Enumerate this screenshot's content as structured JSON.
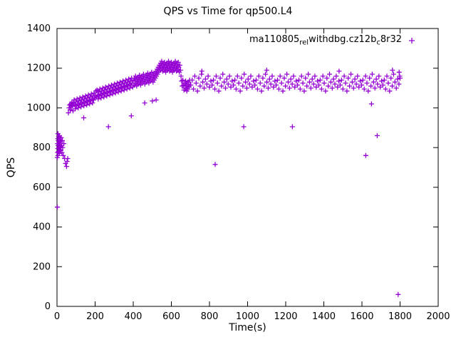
{
  "title": "QPS vs Time for qp500.L4",
  "axes": {
    "xlabel": "Time(s)",
    "ylabel": "QPS",
    "xticks": [
      0,
      200,
      400,
      600,
      800,
      1000,
      1200,
      1400,
      1600,
      1800,
      2000
    ],
    "yticks": [
      0,
      200,
      400,
      600,
      800,
      1000,
      1200,
      1400
    ]
  },
  "legend": {
    "label_plain": "ma110805_rel_withdbg.cz12b_c8r32",
    "parts": [
      {
        "text": "ma110805",
        "sub": false
      },
      {
        "text": "rel",
        "sub": true
      },
      {
        "text": "withdbg.cz12b",
        "sub": false
      },
      {
        "text": "c",
        "sub": true
      },
      {
        "text": "8r32",
        "sub": false
      }
    ]
  },
  "chart_data": {
    "type": "scatter",
    "title": "QPS vs Time for qp500.L4",
    "xlabel": "Time(s)",
    "ylabel": "QPS",
    "xlim": [
      0,
      2000
    ],
    "ylim": [
      0,
      1400
    ],
    "grid": false,
    "legend_position": "top-right-inside",
    "marker": "plus",
    "color": "#9400d3",
    "series_name": "ma110805_rel_withdbg.cz12b_c8r32",
    "points": [
      [
        2,
        500
      ],
      [
        2,
        750
      ],
      [
        3,
        775
      ],
      [
        3,
        820
      ],
      [
        4,
        795
      ],
      [
        4,
        845
      ],
      [
        5,
        760
      ],
      [
        5,
        870
      ],
      [
        6,
        810
      ],
      [
        7,
        835
      ],
      [
        8,
        780
      ],
      [
        9,
        855
      ],
      [
        10,
        800
      ],
      [
        11,
        825
      ],
      [
        12,
        770
      ],
      [
        13,
        860
      ],
      [
        14,
        815
      ],
      [
        15,
        790
      ],
      [
        16,
        840
      ],
      [
        17,
        805
      ],
      [
        18,
        830
      ],
      [
        20,
        785
      ],
      [
        22,
        850
      ],
      [
        24,
        810
      ],
      [
        26,
        775
      ],
      [
        28,
        835
      ],
      [
        30,
        800
      ],
      [
        33,
        760
      ],
      [
        36,
        820
      ],
      [
        40,
        745
      ],
      [
        45,
        720
      ],
      [
        50,
        705
      ],
      [
        53,
        730
      ],
      [
        56,
        745
      ],
      [
        60,
        975
      ],
      [
        63,
        1000
      ],
      [
        66,
        1015
      ],
      [
        69,
        990
      ],
      [
        72,
        1020
      ],
      [
        75,
        1005
      ],
      [
        78,
        1030
      ],
      [
        81,
        1010
      ],
      [
        84,
        985
      ],
      [
        87,
        1025
      ],
      [
        90,
        1040
      ],
      [
        93,
        1015
      ],
      [
        96,
        995
      ],
      [
        99,
        1030
      ],
      [
        102,
        1010
      ],
      [
        105,
        1045
      ],
      [
        108,
        1020
      ],
      [
        111,
        1000
      ],
      [
        114,
        1035
      ],
      [
        117,
        1015
      ],
      [
        120,
        1050
      ],
      [
        123,
        1025
      ],
      [
        126,
        1005
      ],
      [
        129,
        1040
      ],
      [
        132,
        1020
      ],
      [
        135,
        1055
      ],
      [
        138,
        1030
      ],
      [
        140,
        950
      ],
      [
        141,
        1010
      ],
      [
        144,
        1045
      ],
      [
        147,
        1025
      ],
      [
        150,
        1060
      ],
      [
        153,
        1035
      ],
      [
        156,
        1015
      ],
      [
        159,
        1050
      ],
      [
        162,
        1030
      ],
      [
        165,
        1065
      ],
      [
        168,
        1040
      ],
      [
        171,
        1020
      ],
      [
        174,
        1055
      ],
      [
        177,
        1035
      ],
      [
        180,
        1070
      ],
      [
        183,
        1045
      ],
      [
        186,
        1025
      ],
      [
        189,
        1060
      ],
      [
        192,
        1040
      ],
      [
        195,
        1075
      ],
      [
        198,
        1050
      ],
      [
        201,
        1060
      ],
      [
        204,
        1085
      ],
      [
        207,
        1055
      ],
      [
        210,
        1090
      ],
      [
        213,
        1065
      ],
      [
        216,
        1045
      ],
      [
        219,
        1080
      ],
      [
        222,
        1060
      ],
      [
        225,
        1095
      ],
      [
        228,
        1070
      ],
      [
        231,
        1050
      ],
      [
        234,
        1085
      ],
      [
        237,
        1065
      ],
      [
        240,
        1100
      ],
      [
        243,
        1075
      ],
      [
        246,
        1055
      ],
      [
        249,
        1090
      ],
      [
        252,
        1070
      ],
      [
        255,
        1105
      ],
      [
        258,
        1080
      ],
      [
        261,
        1060
      ],
      [
        264,
        1095
      ],
      [
        267,
        1075
      ],
      [
        270,
        905
      ],
      [
        271,
        1110
      ],
      [
        274,
        1085
      ],
      [
        277,
        1065
      ],
      [
        280,
        1100
      ],
      [
        283,
        1080
      ],
      [
        286,
        1115
      ],
      [
        289,
        1090
      ],
      [
        292,
        1070
      ],
      [
        295,
        1105
      ],
      [
        298,
        1085
      ],
      [
        301,
        1120
      ],
      [
        304,
        1095
      ],
      [
        307,
        1075
      ],
      [
        310,
        1110
      ],
      [
        313,
        1090
      ],
      [
        316,
        1125
      ],
      [
        319,
        1100
      ],
      [
        322,
        1080
      ],
      [
        325,
        1115
      ],
      [
        328,
        1095
      ],
      [
        331,
        1130
      ],
      [
        334,
        1105
      ],
      [
        337,
        1085
      ],
      [
        340,
        1120
      ],
      [
        343,
        1100
      ],
      [
        346,
        1135
      ],
      [
        349,
        1110
      ],
      [
        352,
        1090
      ],
      [
        355,
        1125
      ],
      [
        358,
        1105
      ],
      [
        361,
        1140
      ],
      [
        364,
        1115
      ],
      [
        367,
        1095
      ],
      [
        370,
        1130
      ],
      [
        373,
        1110
      ],
      [
        376,
        1145
      ],
      [
        379,
        1120
      ],
      [
        382,
        1100
      ],
      [
        385,
        1135
      ],
      [
        388,
        1115
      ],
      [
        390,
        960
      ],
      [
        391,
        1150
      ],
      [
        394,
        1125
      ],
      [
        397,
        1105
      ],
      [
        400,
        1140
      ],
      [
        403,
        1115
      ],
      [
        406,
        1150
      ],
      [
        409,
        1125
      ],
      [
        412,
        1160
      ],
      [
        415,
        1135
      ],
      [
        418,
        1110
      ],
      [
        421,
        1145
      ],
      [
        424,
        1120
      ],
      [
        427,
        1155
      ],
      [
        430,
        1130
      ],
      [
        433,
        1165
      ],
      [
        436,
        1140
      ],
      [
        439,
        1115
      ],
      [
        442,
        1150
      ],
      [
        445,
        1125
      ],
      [
        448,
        1160
      ],
      [
        451,
        1135
      ],
      [
        454,
        1170
      ],
      [
        457,
        1145
      ],
      [
        460,
        1025
      ],
      [
        461,
        1120
      ],
      [
        464,
        1155
      ],
      [
        467,
        1130
      ],
      [
        470,
        1165
      ],
      [
        473,
        1140
      ],
      [
        476,
        1175
      ],
      [
        479,
        1150
      ],
      [
        482,
        1125
      ],
      [
        485,
        1160
      ],
      [
        488,
        1135
      ],
      [
        491,
        1170
      ],
      [
        494,
        1145
      ],
      [
        497,
        1180
      ],
      [
        500,
        1035
      ],
      [
        501,
        1155
      ],
      [
        504,
        1130
      ],
      [
        507,
        1165
      ],
      [
        510,
        1140
      ],
      [
        513,
        1175
      ],
      [
        516,
        1150
      ],
      [
        519,
        1185
      ],
      [
        520,
        1040
      ],
      [
        522,
        1160
      ],
      [
        525,
        1195
      ],
      [
        528,
        1170
      ],
      [
        531,
        1205
      ],
      [
        534,
        1180
      ],
      [
        537,
        1215
      ],
      [
        540,
        1190
      ],
      [
        543,
        1225
      ],
      [
        546,
        1200
      ],
      [
        549,
        1235
      ],
      [
        552,
        1210
      ],
      [
        555,
        1185
      ],
      [
        558,
        1220
      ],
      [
        561,
        1195
      ],
      [
        564,
        1230
      ],
      [
        567,
        1205
      ],
      [
        570,
        1180
      ],
      [
        573,
        1215
      ],
      [
        576,
        1190
      ],
      [
        579,
        1225
      ],
      [
        582,
        1200
      ],
      [
        585,
        1235
      ],
      [
        588,
        1210
      ],
      [
        591,
        1185
      ],
      [
        594,
        1220
      ],
      [
        597,
        1195
      ],
      [
        600,
        1230
      ],
      [
        603,
        1205
      ],
      [
        606,
        1180
      ],
      [
        609,
        1215
      ],
      [
        612,
        1190
      ],
      [
        615,
        1225
      ],
      [
        618,
        1200
      ],
      [
        621,
        1235
      ],
      [
        624,
        1210
      ],
      [
        627,
        1185
      ],
      [
        630,
        1220
      ],
      [
        633,
        1195
      ],
      [
        636,
        1230
      ],
      [
        639,
        1205
      ],
      [
        642,
        1180
      ],
      [
        645,
        1215
      ],
      [
        648,
        1190
      ],
      [
        651,
        1160
      ],
      [
        654,
        1135
      ],
      [
        657,
        1110
      ],
      [
        660,
        1140
      ],
      [
        663,
        1115
      ],
      [
        666,
        1090
      ],
      [
        669,
        1125
      ],
      [
        672,
        1100
      ],
      [
        675,
        1135
      ],
      [
        678,
        1110
      ],
      [
        681,
        1085
      ],
      [
        684,
        1120
      ],
      [
        687,
        1095
      ],
      [
        690,
        1130
      ],
      [
        693,
        1105
      ],
      [
        696,
        1140
      ],
      [
        699,
        1115
      ],
      [
        702,
        1115
      ],
      [
        709,
        1140
      ],
      [
        716,
        1095
      ],
      [
        723,
        1160
      ],
      [
        730,
        1125
      ],
      [
        737,
        1085
      ],
      [
        744,
        1150
      ],
      [
        751,
        1110
      ],
      [
        758,
        1170
      ],
      [
        765,
        1130
      ],
      [
        772,
        1100
      ],
      [
        779,
        1145
      ],
      [
        786,
        1120
      ],
      [
        793,
        1160
      ],
      [
        800,
        1105
      ],
      [
        807,
        1135
      ],
      [
        814,
        1115
      ],
      [
        821,
        1140
      ],
      [
        828,
        1095
      ],
      [
        835,
        1160
      ],
      [
        842,
        1125
      ],
      [
        849,
        1085
      ],
      [
        856,
        1150
      ],
      [
        863,
        1110
      ],
      [
        870,
        1170
      ],
      [
        877,
        1130
      ],
      [
        884,
        1100
      ],
      [
        891,
        1145
      ],
      [
        898,
        1120
      ],
      [
        905,
        1160
      ],
      [
        912,
        1105
      ],
      [
        919,
        1135
      ],
      [
        926,
        1115
      ],
      [
        933,
        1140
      ],
      [
        940,
        1095
      ],
      [
        947,
        1160
      ],
      [
        954,
        1125
      ],
      [
        961,
        1085
      ],
      [
        968,
        1150
      ],
      [
        975,
        1110
      ],
      [
        982,
        1170
      ],
      [
        989,
        1130
      ],
      [
        996,
        1100
      ],
      [
        1003,
        1145
      ],
      [
        1010,
        1120
      ],
      [
        1017,
        1160
      ],
      [
        1024,
        1105
      ],
      [
        1031,
        1135
      ],
      [
        1038,
        1115
      ],
      [
        1045,
        1140
      ],
      [
        1052,
        1095
      ],
      [
        1059,
        1160
      ],
      [
        1066,
        1125
      ],
      [
        1073,
        1085
      ],
      [
        1080,
        1150
      ],
      [
        1087,
        1110
      ],
      [
        1094,
        1170
      ],
      [
        1101,
        1130
      ],
      [
        1108,
        1100
      ],
      [
        1115,
        1145
      ],
      [
        1122,
        1120
      ],
      [
        1129,
        1160
      ],
      [
        1136,
        1105
      ],
      [
        1143,
        1135
      ],
      [
        1150,
        1115
      ],
      [
        1157,
        1140
      ],
      [
        1164,
        1095
      ],
      [
        1171,
        1160
      ],
      [
        1178,
        1125
      ],
      [
        1185,
        1085
      ],
      [
        1192,
        1150
      ],
      [
        1199,
        1110
      ],
      [
        1206,
        1170
      ],
      [
        1213,
        1130
      ],
      [
        1220,
        1100
      ],
      [
        1227,
        1145
      ],
      [
        1234,
        1120
      ],
      [
        1241,
        1160
      ],
      [
        1248,
        1105
      ],
      [
        1255,
        1135
      ],
      [
        1262,
        1115
      ],
      [
        1269,
        1140
      ],
      [
        1276,
        1095
      ],
      [
        1283,
        1160
      ],
      [
        1290,
        1125
      ],
      [
        1297,
        1085
      ],
      [
        1304,
        1150
      ],
      [
        1311,
        1110
      ],
      [
        1318,
        1170
      ],
      [
        1325,
        1130
      ],
      [
        1332,
        1100
      ],
      [
        1339,
        1145
      ],
      [
        1346,
        1120
      ],
      [
        1353,
        1160
      ],
      [
        1360,
        1105
      ],
      [
        1367,
        1135
      ],
      [
        1374,
        1115
      ],
      [
        1381,
        1140
      ],
      [
        1388,
        1095
      ],
      [
        1395,
        1160
      ],
      [
        1402,
        1125
      ],
      [
        1409,
        1085
      ],
      [
        1416,
        1150
      ],
      [
        1423,
        1110
      ],
      [
        1430,
        1170
      ],
      [
        1437,
        1130
      ],
      [
        1444,
        1100
      ],
      [
        1451,
        1145
      ],
      [
        1458,
        1120
      ],
      [
        1465,
        1160
      ],
      [
        1472,
        1105
      ],
      [
        1479,
        1135
      ],
      [
        1486,
        1115
      ],
      [
        1493,
        1140
      ],
      [
        1500,
        1095
      ],
      [
        1507,
        1160
      ],
      [
        1514,
        1125
      ],
      [
        1521,
        1085
      ],
      [
        1528,
        1150
      ],
      [
        1535,
        1110
      ],
      [
        1542,
        1170
      ],
      [
        1549,
        1130
      ],
      [
        1556,
        1100
      ],
      [
        1563,
        1145
      ],
      [
        1570,
        1120
      ],
      [
        1577,
        1160
      ],
      [
        1584,
        1105
      ],
      [
        1591,
        1135
      ],
      [
        1598,
        1115
      ],
      [
        1605,
        1140
      ],
      [
        1612,
        1095
      ],
      [
        1619,
        1160
      ],
      [
        1626,
        1125
      ],
      [
        1633,
        1085
      ],
      [
        1640,
        1150
      ],
      [
        1647,
        1110
      ],
      [
        1654,
        1170
      ],
      [
        1661,
        1130
      ],
      [
        1668,
        1100
      ],
      [
        1675,
        1145
      ],
      [
        1682,
        1120
      ],
      [
        1689,
        1160
      ],
      [
        1696,
        1105
      ],
      [
        1703,
        1135
      ],
      [
        1710,
        1115
      ],
      [
        1717,
        1140
      ],
      [
        1724,
        1095
      ],
      [
        1731,
        1160
      ],
      [
        1738,
        1125
      ],
      [
        1745,
        1085
      ],
      [
        1752,
        1150
      ],
      [
        1759,
        1110
      ],
      [
        1766,
        1170
      ],
      [
        1773,
        1130
      ],
      [
        1780,
        1100
      ],
      [
        1787,
        1145
      ],
      [
        1794,
        1120
      ],
      [
        1800,
        1150
      ],
      [
        760,
        1185
      ],
      [
        1100,
        1190
      ],
      [
        1480,
        1185
      ],
      [
        1760,
        1190
      ],
      [
        1795,
        1180
      ],
      [
        1798,
        1160
      ],
      [
        830,
        715
      ],
      [
        980,
        905
      ],
      [
        1235,
        905
      ],
      [
        1650,
        1020
      ],
      [
        1620,
        760
      ],
      [
        1680,
        860
      ],
      [
        1790,
        60
      ]
    ]
  }
}
